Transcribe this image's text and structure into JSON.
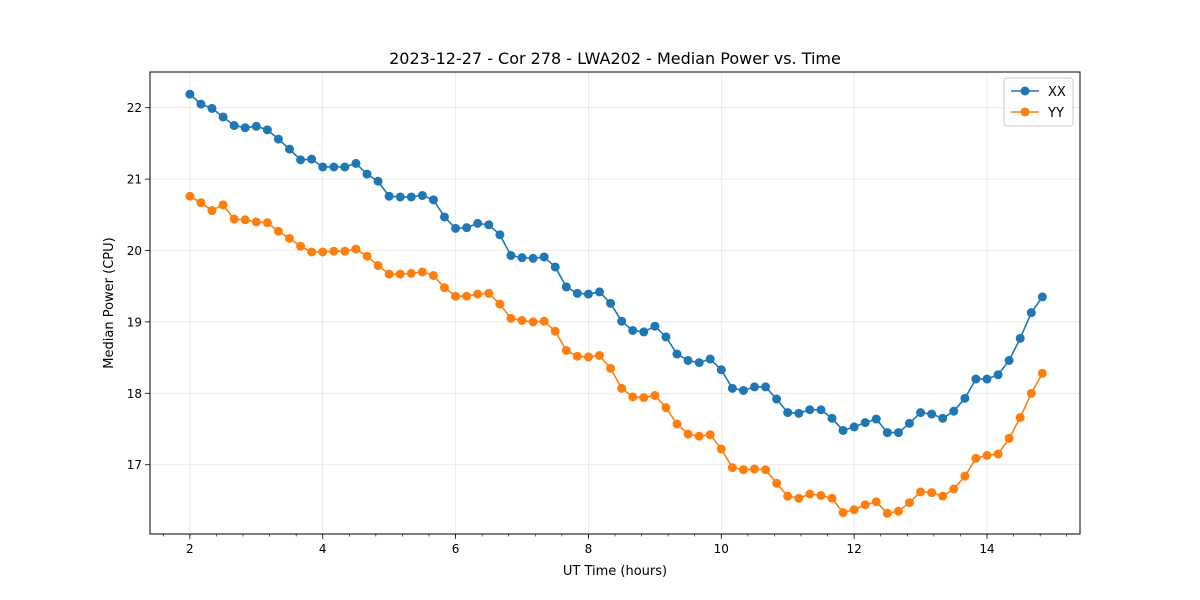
{
  "chart_data": {
    "type": "line",
    "title": "2023-12-27 - Cor 278 - LWA202 - Median Power vs. Time",
    "xlabel": "UT Time (hours)",
    "ylabel": "Median Power (CPU)",
    "xlim": [
      1.4,
      15.4
    ],
    "ylim": [
      16.03,
      22.5
    ],
    "xticks": [
      2,
      4,
      6,
      8,
      10,
      12,
      14
    ],
    "yticks": [
      17,
      18,
      19,
      20,
      21,
      22
    ],
    "x_minor_step": 0.4,
    "grid": true,
    "legend_position": "upper right",
    "x": [
      2.0,
      2.167,
      2.333,
      2.5,
      2.667,
      2.833,
      3.0,
      3.167,
      3.333,
      3.5,
      3.667,
      3.833,
      4.0,
      4.167,
      4.333,
      4.5,
      4.667,
      4.833,
      5.0,
      5.167,
      5.333,
      5.5,
      5.667,
      5.833,
      6.0,
      6.167,
      6.333,
      6.5,
      6.667,
      6.833,
      7.0,
      7.167,
      7.333,
      7.5,
      7.667,
      7.833,
      8.0,
      8.167,
      8.333,
      8.5,
      8.667,
      8.833,
      9.0,
      9.167,
      9.333,
      9.5,
      9.667,
      9.833,
      10.0,
      10.167,
      10.333,
      10.5,
      10.667,
      10.833,
      11.0,
      11.167,
      11.333,
      11.5,
      11.667,
      11.833,
      12.0,
      12.167,
      12.333,
      12.5,
      12.667,
      12.833,
      13.0,
      13.167,
      13.333,
      13.5,
      13.667,
      13.833,
      14.0,
      14.167,
      14.333,
      14.5,
      14.667,
      14.833
    ],
    "series": [
      {
        "name": "XX",
        "color": "#1f77b4",
        "values": [
          22.19,
          22.05,
          21.99,
          21.87,
          21.75,
          21.72,
          21.74,
          21.69,
          21.56,
          21.42,
          21.27,
          21.28,
          21.17,
          21.17,
          21.17,
          21.22,
          21.07,
          20.97,
          20.76,
          20.75,
          20.75,
          20.77,
          20.71,
          20.47,
          20.31,
          20.32,
          20.38,
          20.36,
          20.22,
          19.93,
          19.9,
          19.89,
          19.91,
          19.77,
          19.49,
          19.4,
          19.39,
          19.42,
          19.26,
          19.01,
          18.88,
          18.86,
          18.94,
          18.79,
          18.55,
          18.46,
          18.43,
          18.48,
          18.33,
          18.07,
          18.04,
          18.09,
          18.09,
          17.92,
          17.73,
          17.72,
          17.77,
          17.77,
          17.65,
          17.48,
          17.53,
          17.59,
          17.64,
          17.45,
          17.45,
          17.58,
          17.73,
          17.71,
          17.65,
          17.75,
          17.93,
          18.2,
          18.2,
          18.26,
          18.46,
          18.77,
          19.13,
          19.35
        ]
      },
      {
        "name": "YY",
        "color": "#ff7f0e",
        "values": [
          20.76,
          20.67,
          20.56,
          20.64,
          20.44,
          20.43,
          20.4,
          20.39,
          20.27,
          20.17,
          20.06,
          19.98,
          19.98,
          19.99,
          19.99,
          20.02,
          19.92,
          19.79,
          19.67,
          19.67,
          19.68,
          19.7,
          19.65,
          19.48,
          19.36,
          19.36,
          19.39,
          19.4,
          19.25,
          19.05,
          19.02,
          19.0,
          19.01,
          18.87,
          18.6,
          18.52,
          18.51,
          18.53,
          18.35,
          18.07,
          17.95,
          17.94,
          17.97,
          17.8,
          17.57,
          17.43,
          17.4,
          17.42,
          17.22,
          16.96,
          16.93,
          16.94,
          16.93,
          16.74,
          16.56,
          16.53,
          16.59,
          16.57,
          16.53,
          16.33,
          16.37,
          16.44,
          16.48,
          16.32,
          16.35,
          16.47,
          16.62,
          16.61,
          16.56,
          16.66,
          16.84,
          17.09,
          17.13,
          17.15,
          17.37,
          17.66,
          18.0,
          18.28
        ]
      }
    ]
  }
}
